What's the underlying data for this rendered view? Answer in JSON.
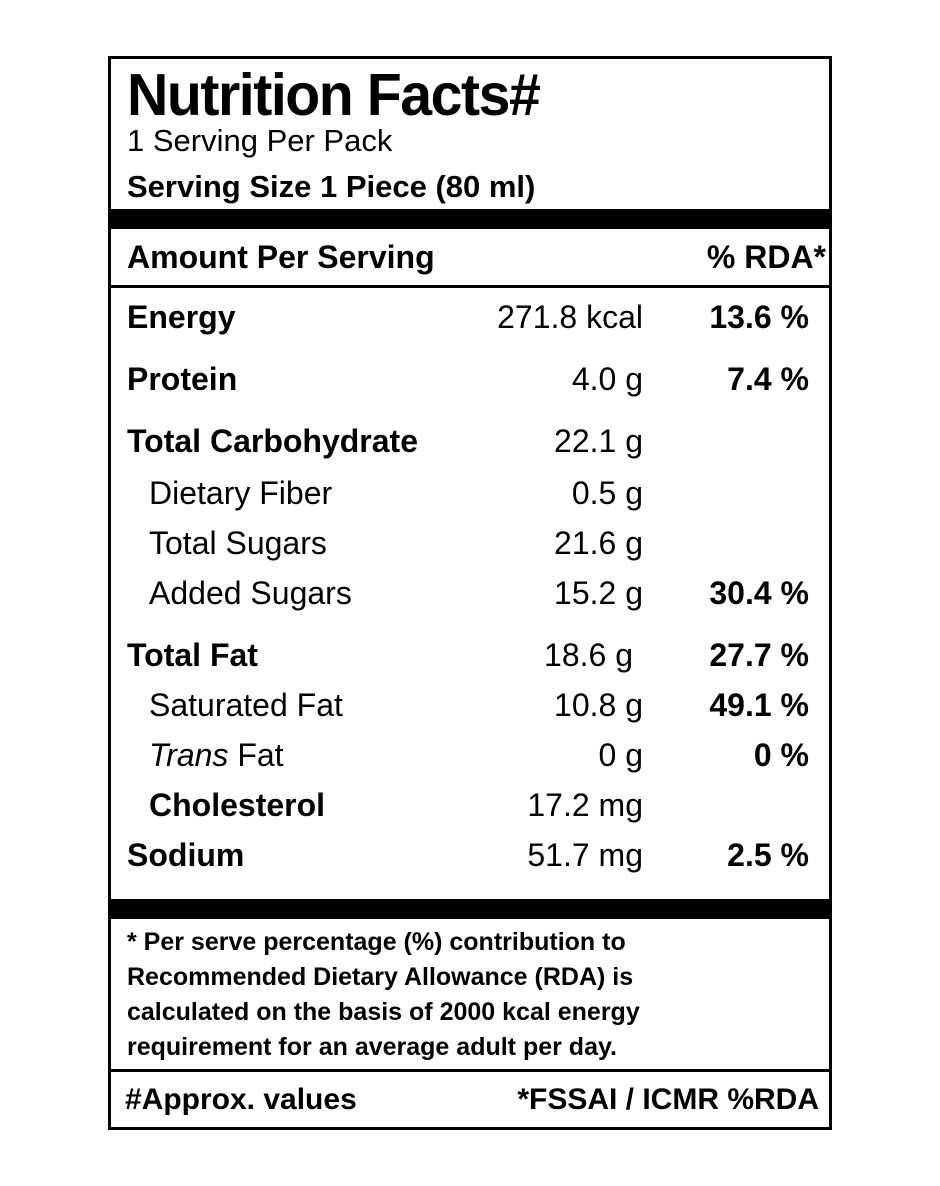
{
  "title": "Nutrition Facts#",
  "servings_per_pack": "1 Serving Per Pack",
  "serving_size": "Serving Size 1 Piece (80 ml)",
  "header": {
    "amount_label": "Amount Per Serving",
    "rda_label": "% RDA*"
  },
  "rows": [
    {
      "name": "Energy",
      "amount": "271.8 kcal",
      "rda": "13.6 %"
    },
    {
      "name": "Protein",
      "amount": "4.0 g",
      "rda": "7.4 %"
    },
    {
      "name": "Total Carbohydrate",
      "amount": "22.1 g",
      "rda": ""
    },
    {
      "name": "Dietary Fiber",
      "amount": "0.5 g",
      "rda": ""
    },
    {
      "name": "Total Sugars",
      "amount": "21.6 g",
      "rda": ""
    },
    {
      "name": "Added Sugars",
      "amount": "15.2 g",
      "rda": "30.4 %"
    },
    {
      "name": "Total Fat",
      "amount": "18.6 g",
      "rda": "27.7 %"
    },
    {
      "name": "Saturated Fat",
      "amount": "10.8 g",
      "rda": "49.1 %"
    },
    {
      "name_italic": "Trans",
      "name_rest": " Fat",
      "amount": "0 g",
      "rda": "0 %"
    },
    {
      "name": "Cholesterol",
      "amount": "17.2 mg",
      "rda": ""
    },
    {
      "name": "Sodium",
      "amount": "51.7 mg",
      "rda": "2.5 %"
    }
  ],
  "footnote": [
    "* Per serve percentage (%) contribution to",
    "Recommended Dietary Allowance (RDA) is",
    "calculated on the basis of 2000 kcal energy",
    "requirement for an average adult per day."
  ],
  "bottom": {
    "left": "#Approx. values",
    "right": "*FSSAI / ICMR %RDA"
  }
}
